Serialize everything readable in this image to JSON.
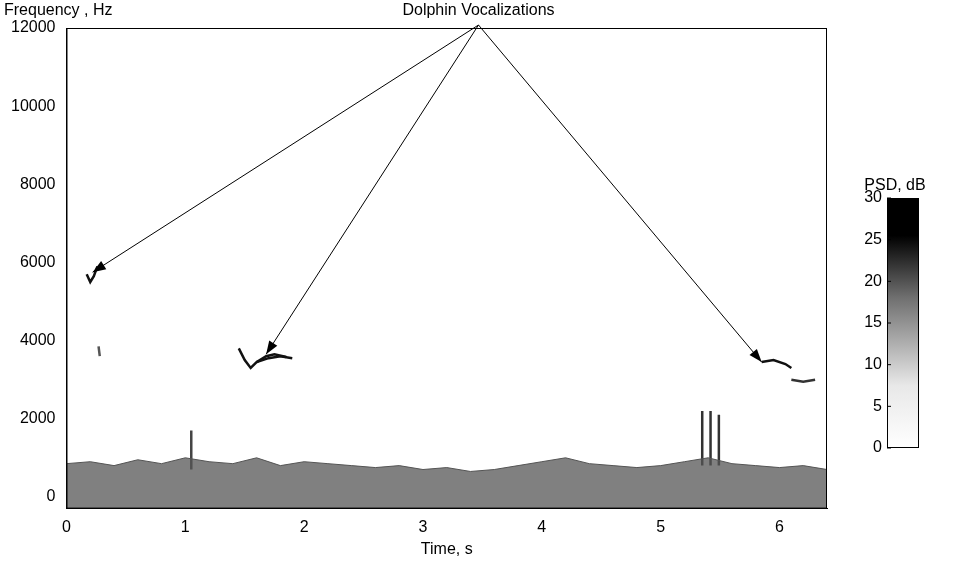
{
  "chart_data": {
    "type": "line",
    "annotation": {
      "text": "Dolphin Vocalizations",
      "targets": [
        {
          "x": 0.22,
          "y": 5750
        },
        {
          "x": 1.68,
          "y": 3650
        },
        {
          "x": 5.85,
          "y": 3450
        }
      ]
    },
    "x_label": "Time, s",
    "y_label": "Frequency , Hz",
    "xlim": [
      0,
      6.4
    ],
    "xticks": [
      0,
      1,
      2,
      3,
      4,
      5,
      6
    ],
    "ylim": [
      -300,
      12000
    ],
    "yticks": [
      0,
      2000,
      4000,
      6000,
      8000,
      10000,
      12000
    ],
    "grid": false,
    "marker": "none",
    "colorbar": {
      "label": "PSD, dB",
      "range": [
        0,
        30
      ],
      "ticks": [
        0,
        5,
        10,
        15,
        20,
        25,
        30
      ]
    },
    "series": [
      {
        "type": "area",
        "color": "#555555",
        "line_style": "solid",
        "x": [
          0,
          0.2,
          0.4,
          0.6,
          0.8,
          1.0,
          1.2,
          1.4,
          1.6,
          1.8,
          2.0,
          2.2,
          2.4,
          2.6,
          2.8,
          3.0,
          3.2,
          3.4,
          3.6,
          3.8,
          4.0,
          4.2,
          4.4,
          4.6,
          4.8,
          5.0,
          5.2,
          5.4,
          5.6,
          5.8,
          6.0,
          6.2,
          6.4
        ],
        "values": [
          850,
          900,
          800,
          950,
          850,
          1000,
          900,
          850,
          1000,
          800,
          900,
          850,
          800,
          750,
          800,
          700,
          750,
          650,
          700,
          800,
          900,
          1000,
          850,
          800,
          750,
          800,
          900,
          1000,
          850,
          800,
          750,
          800,
          700
        ]
      },
      {
        "type": "line",
        "color": "#444444",
        "line_style": "solid",
        "x": [
          1.05,
          1.05
        ],
        "values": [
          700,
          1700
        ]
      },
      {
        "type": "line",
        "color": "#333333",
        "line_style": "solid",
        "x": [
          5.35,
          5.35
        ],
        "values": [
          800,
          2200
        ]
      },
      {
        "type": "line",
        "color": "#333333",
        "line_style": "solid",
        "x": [
          5.42,
          5.42
        ],
        "values": [
          800,
          2200
        ]
      },
      {
        "type": "line",
        "color": "#333333",
        "line_style": "solid",
        "x": [
          5.49,
          5.49
        ],
        "values": [
          800,
          2100
        ]
      },
      {
        "type": "line",
        "color": "#111111",
        "line_style": "solid",
        "x": [
          0.17,
          0.2,
          0.23,
          0.26
        ],
        "values": [
          5700,
          5500,
          5650,
          5900
        ]
      },
      {
        "type": "line",
        "color": "#555555",
        "line_style": "solid",
        "x": [
          0.27,
          0.28
        ],
        "values": [
          3850,
          3600
        ]
      },
      {
        "type": "line",
        "color": "#111111",
        "line_style": "solid",
        "x": [
          1.45,
          1.5,
          1.55,
          1.6,
          1.7,
          1.8,
          1.9
        ],
        "values": [
          3800,
          3500,
          3300,
          3450,
          3550,
          3600,
          3550
        ]
      },
      {
        "type": "line",
        "color": "#111111",
        "line_style": "solid",
        "x": [
          1.6,
          1.68,
          1.75,
          1.85
        ],
        "values": [
          3450,
          3600,
          3650,
          3580
        ]
      },
      {
        "type": "line",
        "color": "#111111",
        "line_style": "solid",
        "x": [
          5.85,
          5.95,
          6.05,
          6.1
        ],
        "values": [
          3450,
          3500,
          3400,
          3300
        ]
      },
      {
        "type": "line",
        "color": "#333333",
        "line_style": "solid",
        "x": [
          6.1,
          6.2,
          6.3
        ],
        "values": [
          3000,
          2950,
          3000
        ]
      }
    ]
  }
}
